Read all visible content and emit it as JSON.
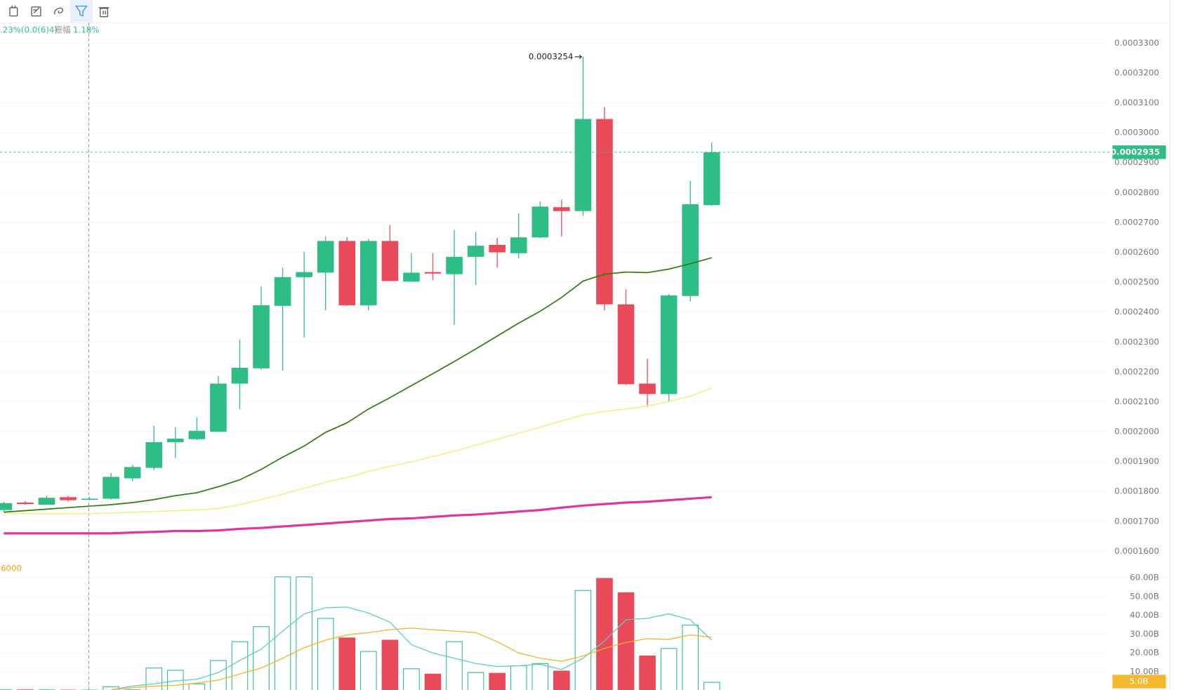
{
  "chart_data": {
    "type": "candlestick",
    "info": [
      ".23%(0.0(6)4)",
      "振幅",
      "1.18%"
    ],
    "up_color": "#2ebd85",
    "down_color": "#e84a5a",
    "open": [
      0.0001738,
      0.0001763,
      0.0001756,
      0.0001781,
      0.0001773,
      0.0001776,
      0.0001844,
      0.0001879,
      0.0001965,
      0.0001975,
      0.0002,
      0.0002161,
      0.0002212,
      0.0002421,
      0.0002517,
      0.0002532,
      0.0002638,
      0.0002423,
      0.0002638,
      0.0002502,
      0.0002534,
      0.0002527,
      0.0002585,
      0.0002625,
      0.0002597,
      0.000265,
      0.0002751,
      0.0002738,
      0.0003046,
      0.0002426,
      0.0002161,
      0.0002126,
      0.0002454,
      0.0002758
    ],
    "high": [
      0.0001766,
      0.0001768,
      0.0001786,
      0.0001786,
      0.0001781,
      0.0001862,
      0.0001889,
      0.000202,
      0.0002015,
      0.0002048,
      0.0002187,
      0.0002308,
      0.0002486,
      0.0002549,
      0.0002602,
      0.0002653,
      0.000265,
      0.0002645,
      0.000269,
      0.0002597,
      0.0002597,
      0.0002675,
      0.0002668,
      0.0002648,
      0.0002731,
      0.0002771,
      0.0002776,
      0.0003254,
      0.0003086,
      0.0002476,
      0.0002244,
      0.0002461,
      0.0002839,
      0.0002967
    ],
    "low": [
      0.0001733,
      0.0001756,
      0.0001756,
      0.0001766,
      0.0001771,
      0.0001773,
      0.0001836,
      0.0001872,
      0.0001912,
      0.0001972,
      0.0002,
      0.0002076,
      0.0002207,
      0.0002204,
      0.0002315,
      0.0002406,
      0.0002421,
      0.0002406,
      0.0002504,
      0.0002502,
      0.0002507,
      0.0002358,
      0.0002491,
      0.0002549,
      0.000258,
      0.0002648,
      0.0002653,
      0.0002723,
      0.0002406,
      0.0002156,
      0.0002083,
      0.0002101,
      0.0002436,
      0.0002756
    ],
    "close": [
      0.0001761,
      0.0001758,
      0.0001779,
      0.0001771,
      0.0001776,
      0.0001849,
      0.0001882,
      0.0001965,
      0.0001977,
      0.0002003,
      0.0002161,
      0.0002214,
      0.0002423,
      0.0002517,
      0.0002534,
      0.0002638,
      0.0002423,
      0.0002638,
      0.0002504,
      0.0002532,
      0.0002529,
      0.0002585,
      0.0002622,
      0.00026,
      0.000265,
      0.0002753,
      0.0002738,
      0.0003046,
      0.0002426,
      0.0002159,
      0.0002126,
      0.0002456,
      0.0002761,
      0.0002935
    ],
    "lines": [
      {
        "color": "#2e7d0f",
        "values": [
          0.0001731,
          0.0001736,
          0.0001741,
          0.0001746,
          0.0001751,
          0.0001756,
          0.0001763,
          0.0001773,
          0.0001786,
          0.0001796,
          0.0001816,
          0.0001839,
          0.0001874,
          0.0001915,
          0.0001952,
          0.0001998,
          0.000203,
          0.0002076,
          0.0002114,
          0.0002154,
          0.0002194,
          0.0002235,
          0.0002277,
          0.000232,
          0.0002363,
          0.0002403,
          0.0002449,
          0.0002504,
          0.0002527,
          0.0002534,
          0.0002532,
          0.0002544,
          0.0002562,
          0.0002582
        ]
      },
      {
        "color": "#f7f08a",
        "values": [
          0.0001726,
          0.0001726,
          0.0001726,
          0.0001726,
          0.0001726,
          0.0001728,
          0.0001731,
          0.0001733,
          0.0001736,
          0.0001738,
          0.0001743,
          0.0001756,
          0.0001773,
          0.0001791,
          0.0001811,
          0.0001831,
          0.0001847,
          0.0001867,
          0.0001884,
          0.0001899,
          0.0001917,
          0.0001935,
          0.0001955,
          0.0001975,
          0.0001995,
          0.0002015,
          0.0002036,
          0.0002056,
          0.0002068,
          0.0002076,
          0.0002086,
          0.0002101,
          0.0002119,
          0.0002146
        ]
      },
      {
        "color": "#e0359a",
        "values": [
          0.000166,
          0.000166,
          0.000166,
          0.000166,
          0.000166,
          0.000166,
          0.0001663,
          0.0001665,
          0.0001668,
          0.0001668,
          0.000167,
          0.0001675,
          0.0001678,
          0.0001683,
          0.0001688,
          0.0001693,
          0.0001698,
          0.0001703,
          0.0001708,
          0.000171,
          0.0001715,
          0.000172,
          0.0001723,
          0.0001728,
          0.0001733,
          0.0001738,
          0.0001746,
          0.0001753,
          0.0001758,
          0.0001763,
          0.0001766,
          0.0001771,
          0.0001776,
          0.0001781
        ]
      }
    ],
    "ylim": [
      0.00016,
      0.00033
    ],
    "yticks": [
      {
        "value": 0.00033,
        "label": "0.0003300"
      },
      {
        "value": 0.00032,
        "label": "0.0003200"
      },
      {
        "value": 0.00031,
        "label": "0.0003100"
      },
      {
        "value": 0.0003,
        "label": "0.0003000"
      },
      {
        "value": 0.00029,
        "label": "0.0002900"
      },
      {
        "value": 0.00028,
        "label": "0.0002800"
      },
      {
        "value": 0.00027,
        "label": "0.0002700"
      },
      {
        "value": 0.00026,
        "label": "0.0002600"
      },
      {
        "value": 0.00025,
        "label": "0.0002500"
      },
      {
        "value": 0.00024,
        "label": "0.0002400"
      },
      {
        "value": 0.00023,
        "label": "0.0002300"
      },
      {
        "value": 0.00022,
        "label": "0.0002200"
      },
      {
        "value": 0.00021,
        "label": "0.0002100"
      },
      {
        "value": 0.0002,
        "label": "0.0002000"
      },
      {
        "value": 0.00019,
        "label": "0.0001900"
      },
      {
        "value": 0.00018,
        "label": "0.0001800"
      },
      {
        "value": 0.00017,
        "label": "0.0001700"
      },
      {
        "value": 0.00016,
        "label": "0.0001600"
      }
    ],
    "volume": {
      "type": "bar",
      "label": "6000",
      "marker": "5.0B",
      "values": [
        0.4,
        0.4,
        0.4,
        0.3,
        0.3,
        2.0,
        0.4,
        12,
        10.8,
        3.6,
        16,
        26,
        34,
        60.4,
        60.4,
        38.4,
        28,
        20.8,
        26.8,
        11.6,
        8.8,
        26,
        9.6,
        9.2,
        13.2,
        14.4,
        10.4,
        53.2,
        59.6,
        52,
        18.4,
        22.4,
        34.8,
        4.4
      ],
      "lines": [
        {
          "color": "#5ccfc0",
          "values": [
            null,
            null,
            null,
            null,
            null,
            0.4,
            2.4,
            3.6,
            5.2,
            6,
            9.6,
            16,
            22,
            31.6,
            40.8,
            44,
            44.4,
            41.2,
            36.4,
            24.4,
            20,
            17.2,
            14.4,
            12.8,
            13.2,
            14,
            11.2,
            17.2,
            26.4,
            37.6,
            38.4,
            40.8,
            37.6,
            26.8
          ]
        },
        {
          "color": "#f0b429",
          "values": [
            null,
            null,
            null,
            null,
            null,
            0.4,
            1.6,
            2.4,
            2.8,
            4,
            5.6,
            8.8,
            12,
            17.2,
            22.8,
            26.8,
            29.6,
            30.8,
            32.4,
            33.2,
            32.4,
            31.6,
            30.8,
            26,
            20,
            17.2,
            15.6,
            18.4,
            22.4,
            25.6,
            27.6,
            27.2,
            29.6,
            28.4
          ]
        }
      ],
      "ylim": [
        0,
        60
      ],
      "yticks": [
        {
          "value": 60,
          "label": "60.00B"
        },
        {
          "value": 50,
          "label": "50.00B"
        },
        {
          "value": 40,
          "label": "40.00B"
        },
        {
          "value": 30,
          "label": "30.00B"
        },
        {
          "value": 20,
          "label": "20.00B"
        },
        {
          "value": 10,
          "label": "10.00B"
        }
      ]
    }
  }
}
